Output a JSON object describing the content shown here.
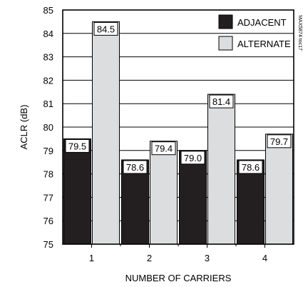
{
  "chart_data": {
    "type": "bar",
    "categories": [
      "1",
      "2",
      "3",
      "4"
    ],
    "series": [
      {
        "name": "ADJACENT",
        "values": [
          79.5,
          78.6,
          79.0,
          78.6
        ],
        "color": "#231f20"
      },
      {
        "name": "ALTERNATE",
        "values": [
          84.5,
          79.4,
          81.4,
          79.7
        ],
        "color": "#dcdddf"
      }
    ],
    "data_labels": [
      "79.5",
      "78.6",
      "79.0",
      "78.6",
      "84.5",
      "79.4",
      "81.4",
      "79.7"
    ],
    "xlabel": "NUMBER OF CARRIERS",
    "ylabel": "ACLR (dB)",
    "ylim": [
      75,
      85
    ],
    "yticks": [
      75,
      76,
      77,
      78,
      79,
      80,
      81,
      82,
      83,
      84,
      85
    ],
    "grid": true,
    "legend_position": "top-right",
    "figure_code": "MAX5874 toc17"
  }
}
